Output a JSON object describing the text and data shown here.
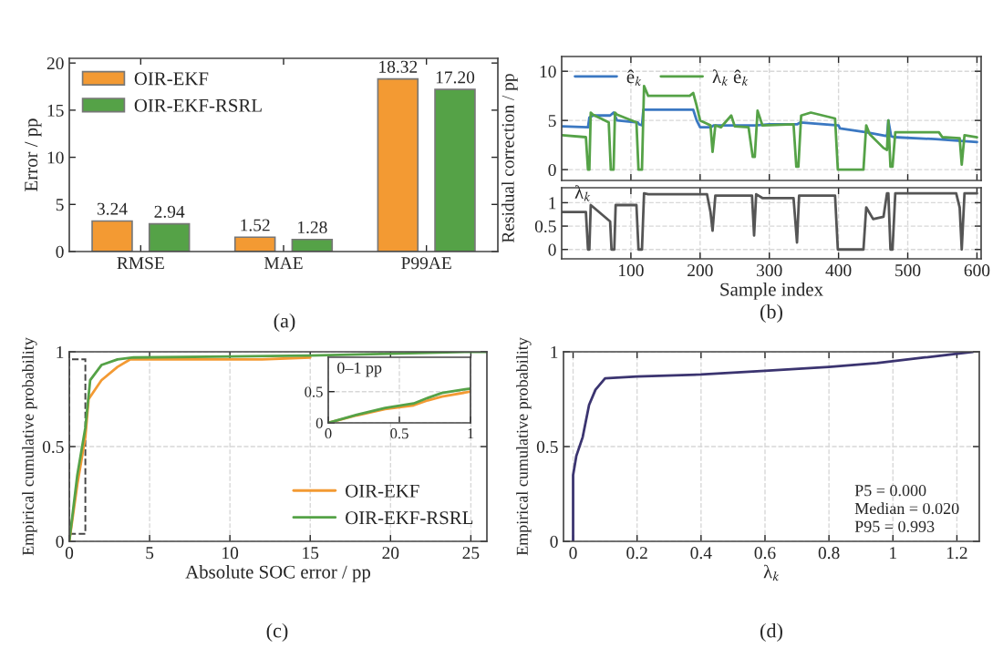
{
  "chart_data": [
    {
      "type": "bar",
      "ylabel": "Error / pp",
      "categories": [
        "RMSE",
        "MAE",
        "P99AE"
      ],
      "ylim": [
        0,
        20.5
      ],
      "yticks": [
        0,
        5,
        10,
        15,
        20
      ],
      "legend": "top left",
      "annotations": [
        "(a)"
      ],
      "series": [
        {
          "name": "OIR-EKF",
          "color": "#f39a33",
          "values": [
            3.24,
            1.52,
            18.32
          ],
          "value_labels": [
            "3.24",
            "1.52",
            "18.32"
          ]
        },
        {
          "name": "OIR-EKF-RSRL",
          "color": "#55a247",
          "values": [
            2.94,
            1.28,
            17.2
          ],
          "value_labels": [
            "2.94",
            "1.28",
            "17.20"
          ]
        }
      ]
    },
    {
      "type": "line",
      "ylabel": "Residual correction / pp",
      "xlim": [
        0,
        606
      ],
      "ylim": [
        -1.1,
        11.5
      ],
      "xticks": [
        100,
        200,
        300,
        400,
        500,
        600
      ],
      "yticks": [
        0,
        5,
        10
      ],
      "grid": true,
      "legend": "top left",
      "tick_labels": "y",
      "series": [
        {
          "name": "ê$_{k}$",
          "color": "#3b78c2",
          "x": [
            1,
            38,
            40,
            45,
            70,
            75,
            80,
            110,
            112,
            116,
            118,
            120,
            190,
            195,
            200,
            215,
            220,
            280,
            300,
            340,
            345,
            400,
            402,
            440,
            470,
            472,
            476,
            480,
            540,
            600
          ],
          "values": [
            4.4,
            4.3,
            5.3,
            5.5,
            5.5,
            5.8,
            5.0,
            4.8,
            4.6,
            4.5,
            6.1,
            6.1,
            6.1,
            5.0,
            4.3,
            4.3,
            4.5,
            4.5,
            4.6,
            4.6,
            4.8,
            4.5,
            4.2,
            3.8,
            3.4,
            5.0,
            3.4,
            3.3,
            3.1,
            2.8
          ]
        },
        {
          "name": "λ$_{k}$ ê$_{k}$",
          "color": "#55a247",
          "x": [
            1,
            35,
            38,
            40,
            42,
            45,
            68,
            71,
            75,
            77,
            80,
            108,
            111,
            116,
            119,
            125,
            185,
            190,
            195,
            200,
            215,
            218,
            222,
            230,
            245,
            250,
            270,
            276,
            279,
            283,
            290,
            335,
            339,
            342,
            346,
            360,
            395,
            399,
            402,
            436,
            440,
            445,
            465,
            470,
            472,
            475,
            478,
            482,
            545,
            550,
            575,
            578,
            582,
            600
          ],
          "values": [
            3.5,
            3.3,
            0,
            0,
            5.8,
            5.6,
            4.8,
            0,
            0,
            5.8,
            5.6,
            4.8,
            0,
            0,
            8.5,
            7.5,
            7.5,
            7.8,
            6.5,
            5.0,
            4.5,
            1.8,
            4.5,
            4.3,
            5.5,
            4.4,
            4.3,
            1.3,
            1.3,
            6.0,
            4.5,
            4.6,
            0.3,
            0.3,
            5.5,
            5.8,
            5.2,
            0,
            0,
            0,
            4.5,
            3.6,
            2.2,
            2.0,
            5.0,
            0.3,
            0.3,
            3.8,
            3.8,
            3.3,
            3.2,
            0.5,
            3.5,
            3.3
          ]
        }
      ]
    },
    {
      "type": "line",
      "ylabel": "λ$_{k}$",
      "xlabel": "Sample index",
      "xlim": [
        0,
        606
      ],
      "ylim": [
        -0.2,
        1.32
      ],
      "xticks": [
        100,
        200,
        300,
        400,
        500,
        600
      ],
      "yticks": [
        0,
        0.5,
        1
      ],
      "grid": true,
      "annotations": [
        "(b)"
      ],
      "series": [
        {
          "color": "#555555",
          "x": [
            1,
            35,
            38,
            40,
            42,
            46,
            70,
            72,
            76,
            78,
            108,
            111,
            116,
            119,
            125,
            210,
            215,
            218,
            222,
            230,
            275,
            278,
            281,
            290,
            335,
            340,
            343,
            350,
            395,
            399,
            402,
            436,
            440,
            450,
            465,
            470,
            472,
            475,
            478,
            482,
            570,
            575,
            578,
            582,
            600
          ],
          "values": [
            0.8,
            0.8,
            0,
            0,
            0.95,
            0.9,
            0.6,
            0,
            0,
            0.95,
            0.95,
            0,
            0,
            1.2,
            1.18,
            1.18,
            0.8,
            0.4,
            1.15,
            1.15,
            1.15,
            0.3,
            1.18,
            1.1,
            1.1,
            0.15,
            1.15,
            1.15,
            1.15,
            0,
            0,
            0,
            0.9,
            0.65,
            0.7,
            1.2,
            1.2,
            0,
            0,
            1.2,
            1.2,
            0.9,
            0,
            1.2,
            1.2
          ]
        }
      ]
    },
    {
      "type": "line",
      "ylabel": "Empirical cumulative probability",
      "xlabel": "Absolute SOC error / pp",
      "xlim": [
        0,
        26
      ],
      "ylim": [
        0,
        1
      ],
      "xticks": [
        0,
        5,
        10,
        15,
        20,
        25
      ],
      "yticks": [
        0,
        0.5,
        1
      ],
      "grid": true,
      "legend": "bottom right",
      "annotations": [
        "(c)"
      ],
      "series": [
        {
          "name": "OIR-EKF",
          "color": "#f39a33",
          "x": [
            0,
            0.5,
            1,
            1.2,
            2,
            3,
            3.8,
            12,
            15
          ],
          "values": [
            0,
            0.3,
            0.55,
            0.75,
            0.85,
            0.92,
            0.96,
            0.96,
            0.97
          ]
        },
        {
          "name": "OIR-EKF-RSRL",
          "color": "#55a247",
          "x": [
            0,
            0.5,
            1,
            1.3,
            2,
            3,
            4,
            15,
            20,
            25,
            26
          ],
          "values": [
            0,
            0.35,
            0.6,
            0.85,
            0.93,
            0.96,
            0.97,
            0.98,
            0.99,
            1,
            1
          ]
        }
      ]
    },
    {
      "type": "line",
      "xlim": [
        0,
        1
      ],
      "ylim": [
        0,
        1.05
      ],
      "xticks": [
        0,
        0.5,
        1
      ],
      "yticks": [
        0,
        0.5
      ],
      "grid": true,
      "annotations": [
        "0–1 pp"
      ],
      "series": [
        {
          "color": "#f39a33",
          "x": [
            0,
            0.2,
            0.4,
            0.6,
            0.7,
            0.8,
            1
          ],
          "values": [
            0,
            0.12,
            0.22,
            0.28,
            0.36,
            0.42,
            0.5
          ]
        },
        {
          "color": "#55a247",
          "x": [
            0,
            0.2,
            0.4,
            0.6,
            0.7,
            0.8,
            1
          ],
          "values": [
            0,
            0.13,
            0.24,
            0.31,
            0.4,
            0.48,
            0.55
          ]
        }
      ]
    },
    {
      "type": "line",
      "ylabel": "Empirical cumulative probability",
      "xlabel": "λ$_{k}$",
      "xlim": [
        -0.03,
        1.27
      ],
      "ylim": [
        0,
        1
      ],
      "xticks": [
        0,
        0.2,
        0.4,
        0.6,
        0.8,
        1,
        1.2
      ],
      "yticks": [
        0,
        0.5,
        1
      ],
      "grid": true,
      "annotations": [
        "(d)",
        "P5 = 0.000",
        "Median = 0.020",
        "P95 = 0.993"
      ],
      "series": [
        {
          "color": "#3b3470",
          "x": [
            0,
            0,
            0.01,
            0.03,
            0.05,
            0.07,
            0.1,
            0.2,
            0.4,
            0.6,
            0.8,
            0.95,
            1.1,
            1.25
          ],
          "values": [
            0,
            0.35,
            0.45,
            0.55,
            0.72,
            0.8,
            0.86,
            0.87,
            0.88,
            0.9,
            0.92,
            0.94,
            0.97,
            1
          ]
        }
      ]
    }
  ]
}
